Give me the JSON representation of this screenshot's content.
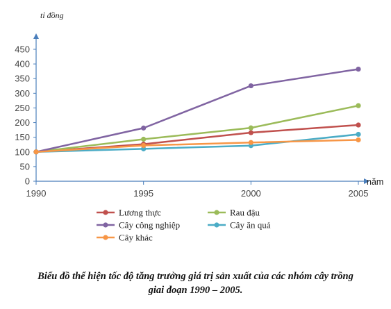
{
  "chart_data": {
    "type": "line",
    "ylabel": "tỉ đồng",
    "xlabel": "năm",
    "x": [
      "1990",
      "1995",
      "2000",
      "2005"
    ],
    "ylim": [
      0,
      450
    ],
    "yticks": [
      0,
      50,
      100,
      150,
      200,
      250,
      300,
      350,
      400,
      450
    ],
    "grid": false,
    "legend_position": "bottom",
    "series": [
      {
        "name": "Lương thực",
        "color": "#c0504d",
        "values": [
          100,
          126.5,
          165.7,
          191.8
        ]
      },
      {
        "name": "Rau đậu",
        "color": "#9bbb59",
        "values": [
          100,
          143.3,
          182.1,
          257.8
        ]
      },
      {
        "name": "Cây công nghiệp",
        "color": "#8064a2",
        "values": [
          100,
          181.5,
          325.5,
          382.3
        ]
      },
      {
        "name": "Cây ăn quả",
        "color": "#4bacc6",
        "values": [
          100,
          110.5,
          121.4,
          160.0
        ]
      },
      {
        "name": "Cây khác",
        "color": "#f79646",
        "values": [
          100,
          122.0,
          132.0,
          141.0
        ]
      }
    ]
  },
  "caption": {
    "line1": "Biểu đồ thể hiện tốc độ tăng trưởng giá trị sản xuất của các nhóm cây trồng",
    "line2": "giai đoạn 1990 – 2005."
  }
}
